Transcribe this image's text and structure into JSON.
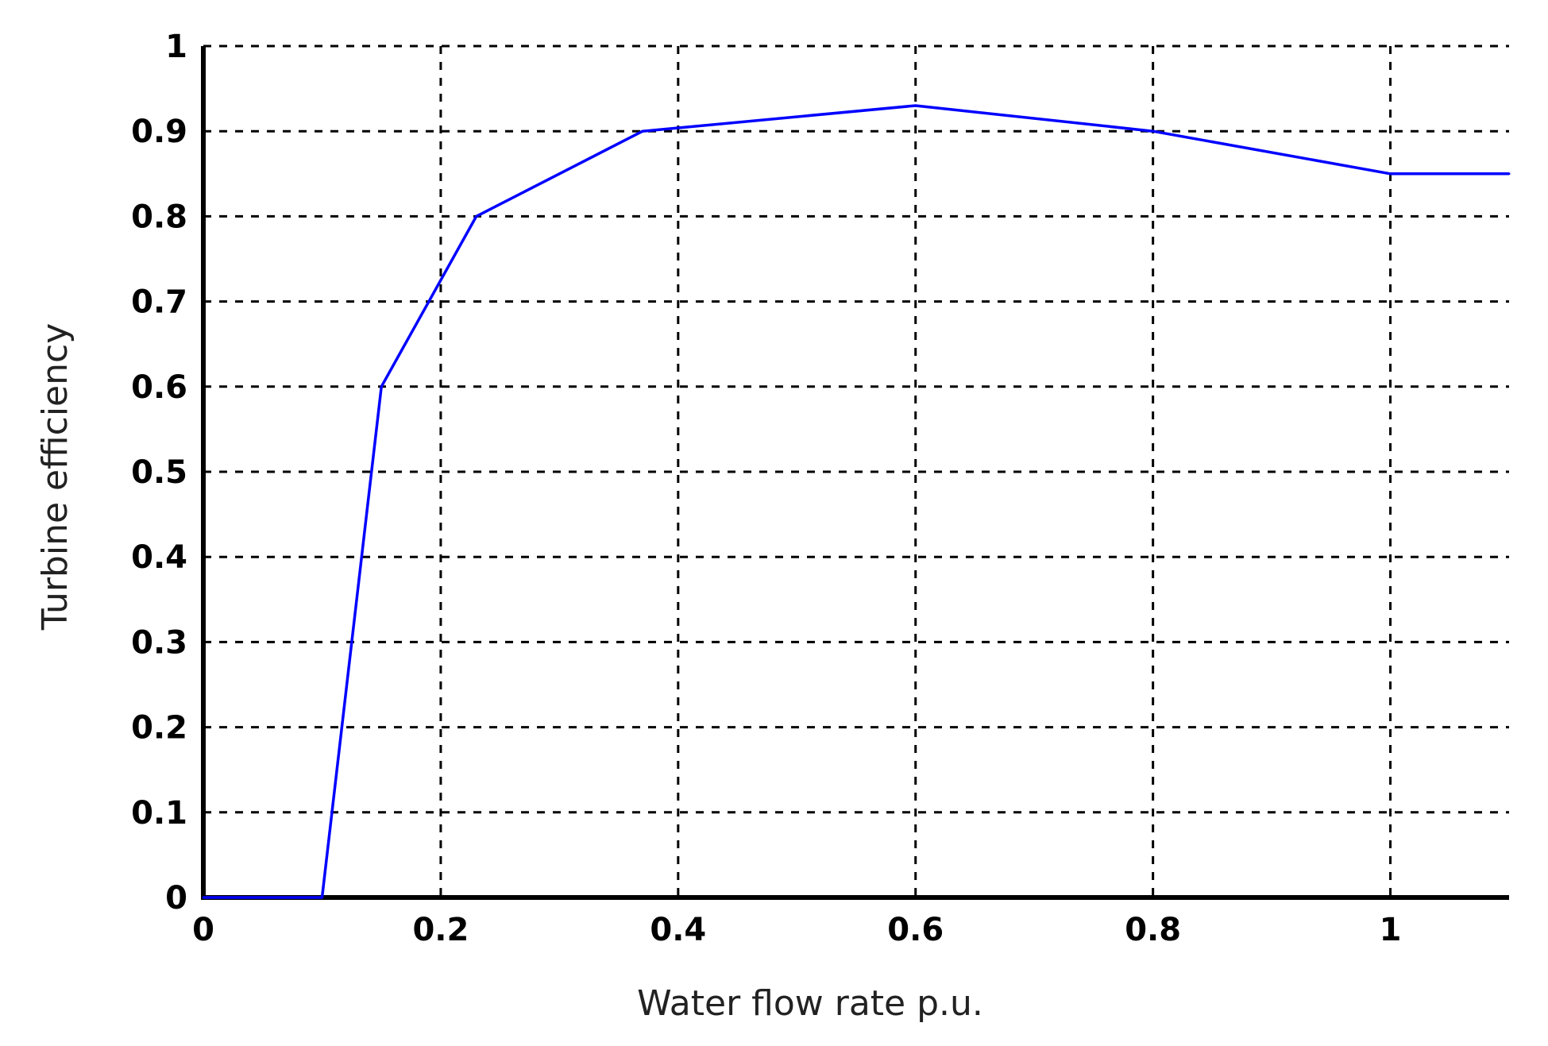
{
  "chart_data": {
    "type": "line",
    "title": "",
    "xlabel": "Water flow rate p.u.",
    "ylabel": "Turbine efficiency",
    "xlim": [
      0,
      1.1
    ],
    "ylim": [
      0,
      1
    ],
    "x_ticks": [
      0,
      0.2,
      0.4,
      0.6,
      0.8,
      1
    ],
    "x_tick_labels": [
      "0",
      "0.2",
      "0.4",
      "0.6",
      "0.8",
      "1"
    ],
    "y_ticks": [
      0,
      0.1,
      0.2,
      0.3,
      0.4,
      0.5,
      0.6,
      0.7,
      0.8,
      0.9,
      1
    ],
    "y_tick_labels": [
      "0",
      "0.1",
      "0.2",
      "0.3",
      "0.4",
      "0.5",
      "0.6",
      "0.7",
      "0.8",
      "0.9",
      "1"
    ],
    "grid": true,
    "series": [
      {
        "color": "#0000ff",
        "x": [
          0,
          0.1,
          0.15,
          0.23,
          0.37,
          0.6,
          0.8,
          1.0,
          1.1
        ],
        "y": [
          0,
          0,
          0.6,
          0.8,
          0.9,
          0.93,
          0.9,
          0.85,
          0.85
        ]
      }
    ]
  }
}
